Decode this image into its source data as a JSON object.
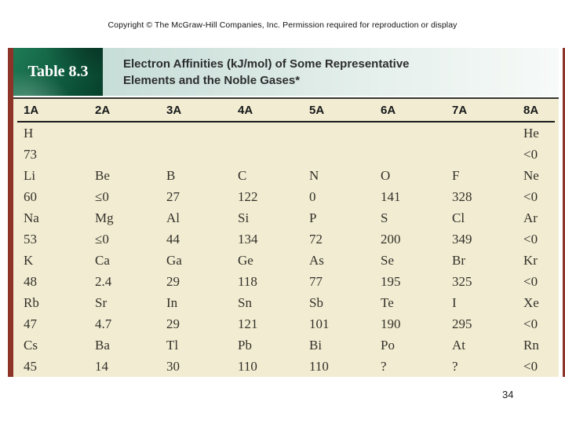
{
  "slide": {
    "copyright": "Copyright © The McGraw-Hill Companies, Inc. Permission required for reproduction or display",
    "page_number": "34"
  },
  "table": {
    "label": "Table 8.3",
    "title_line1": "Electron Affinities (kJ/mol) of Some Representative",
    "title_line2": "Elements and the Noble Gases*",
    "columns": [
      "1A",
      "2A",
      "3A",
      "4A",
      "5A",
      "6A",
      "7A",
      "8A"
    ],
    "rows": [
      {
        "cells": [
          {
            "symbol": "H",
            "value": "73"
          },
          {
            "symbol": "",
            "value": ""
          },
          {
            "symbol": "",
            "value": ""
          },
          {
            "symbol": "",
            "value": ""
          },
          {
            "symbol": "",
            "value": ""
          },
          {
            "symbol": "",
            "value": ""
          },
          {
            "symbol": "",
            "value": ""
          },
          {
            "symbol": "He",
            "value": "<0"
          }
        ]
      },
      {
        "cells": [
          {
            "symbol": "Li",
            "value": "60"
          },
          {
            "symbol": "Be",
            "value": "≤0"
          },
          {
            "symbol": "B",
            "value": "27"
          },
          {
            "symbol": "C",
            "value": "122"
          },
          {
            "symbol": "N",
            "value": "0"
          },
          {
            "symbol": "O",
            "value": "141"
          },
          {
            "symbol": "F",
            "value": "328"
          },
          {
            "symbol": "Ne",
            "value": "<0"
          }
        ]
      },
      {
        "cells": [
          {
            "symbol": "Na",
            "value": "53"
          },
          {
            "symbol": "Mg",
            "value": "≤0"
          },
          {
            "symbol": "Al",
            "value": "44"
          },
          {
            "symbol": "Si",
            "value": "134"
          },
          {
            "symbol": "P",
            "value": "72"
          },
          {
            "symbol": "S",
            "value": "200"
          },
          {
            "symbol": "Cl",
            "value": "349"
          },
          {
            "symbol": "Ar",
            "value": "<0"
          }
        ]
      },
      {
        "cells": [
          {
            "symbol": "K",
            "value": "48"
          },
          {
            "symbol": "Ca",
            "value": "2.4"
          },
          {
            "symbol": "Ga",
            "value": "29"
          },
          {
            "symbol": "Ge",
            "value": "118"
          },
          {
            "symbol": "As",
            "value": "77"
          },
          {
            "symbol": "Se",
            "value": "195"
          },
          {
            "symbol": "Br",
            "value": "325"
          },
          {
            "symbol": "Kr",
            "value": "<0"
          }
        ]
      },
      {
        "cells": [
          {
            "symbol": "Rb",
            "value": "47"
          },
          {
            "symbol": "Sr",
            "value": "4.7"
          },
          {
            "symbol": "In",
            "value": "29"
          },
          {
            "symbol": "Sn",
            "value": "121"
          },
          {
            "symbol": "Sb",
            "value": "101"
          },
          {
            "symbol": "Te",
            "value": "190"
          },
          {
            "symbol": "I",
            "value": "295"
          },
          {
            "symbol": "Xe",
            "value": "<0"
          }
        ]
      },
      {
        "cells": [
          {
            "symbol": "Cs",
            "value": "45"
          },
          {
            "symbol": "Ba",
            "value": "14"
          },
          {
            "symbol": "Tl",
            "value": "30"
          },
          {
            "symbol": "Pb",
            "value": "110"
          },
          {
            "symbol": "Bi",
            "value": "110"
          },
          {
            "symbol": "Po",
            "value": "?"
          },
          {
            "symbol": "At",
            "value": "?"
          },
          {
            "symbol": "Rn",
            "value": "<0"
          }
        ]
      }
    ]
  },
  "colors": {
    "table_background": "#f2edd2",
    "accent_red_stripe": "#8e3328",
    "label_green_dark": "#07402c",
    "label_green_light": "#1e7b55",
    "title_band_left": "#c7ddd7",
    "title_band_right": "#f7faf8",
    "rule_dark": "#1b1b1b"
  }
}
